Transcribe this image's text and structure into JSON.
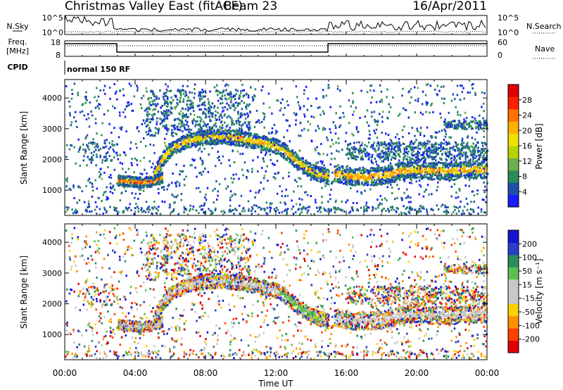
{
  "header": {
    "title": "Christmas Valley East (fitACF)",
    "beam": "Beam 23",
    "date": "16/Apr/2011"
  },
  "noise_panel": {
    "left_label": "N.Sky",
    "right_label": "N.Search",
    "left_ticks": [
      "10^5",
      "10^0"
    ],
    "right_ticks": [
      "10^5",
      "10^0"
    ]
  },
  "freq_panel": {
    "left_label_top": "Freq.",
    "left_label_bottom": "[MHz]",
    "left_ticks": [
      "18",
      "8"
    ],
    "right_label": "Nave",
    "right_ticks": [
      "60",
      "0"
    ]
  },
  "cpid_panel": {
    "label": "CPID",
    "text": "normal 150 RF"
  },
  "colors": {
    "power": [
      "#1a1aff",
      "#1f4fa8",
      "#2a8c5a",
      "#6ab04c",
      "#b8d400",
      "#f0e000",
      "#ffb000",
      "#ff7000",
      "#ff2000",
      "#e00000"
    ],
    "velocity": [
      "#1515d0",
      "#2a3fc8",
      "#2a8c5a",
      "#5cc04c",
      "#c8c8c8",
      "#c8c8c8",
      "#ffd000",
      "#ff9000",
      "#ff4000",
      "#e00000"
    ]
  },
  "chart_data": [
    {
      "type": "heatmap",
      "name": "power",
      "xlabel": "",
      "ylabel": "Slant Range [km]",
      "yticks": [
        1000,
        2000,
        3000,
        4000
      ],
      "ylim": [
        180,
        4600
      ],
      "xlim": [
        0,
        24
      ],
      "colorbar": {
        "label": "Power [dB]",
        "ticks": [
          4,
          8,
          12,
          16,
          20,
          24,
          28
        ],
        "range": [
          0,
          32
        ]
      },
      "bands": [
        {
          "x": [
            3.0,
            3.5,
            4.0,
            4.5,
            5.0,
            5.5
          ],
          "y": [
            1350,
            1320,
            1300,
            1290,
            1320,
            1450
          ],
          "width_km": 160,
          "value": 18
        },
        {
          "x": [
            5.0,
            5.6,
            6.2,
            7.0,
            8.0,
            9.0,
            10.0,
            11.0,
            12.0,
            12.6,
            13.2,
            13.8,
            14.4,
            15.0
          ],
          "y": [
            1500,
            2100,
            2450,
            2650,
            2750,
            2780,
            2700,
            2600,
            2450,
            2250,
            1950,
            1700,
            1550,
            1500
          ],
          "width_km": 220,
          "value": 14
        },
        {
          "x": [
            15.3,
            16.0,
            17.0,
            18.0,
            19.0,
            20.0,
            21.0,
            22.0,
            23.0,
            24.0
          ],
          "y": [
            1600,
            1500,
            1450,
            1500,
            1650,
            1700,
            1650,
            1650,
            1700,
            1700
          ],
          "width_km": 260,
          "value": 15
        }
      ]
    },
    {
      "type": "heatmap",
      "name": "velocity",
      "xlabel": "Time UT",
      "ylabel": "Slant Range [km]",
      "xticks": [
        "00:00",
        "04:00",
        "08:00",
        "12:00",
        "16:00",
        "20:00",
        "00:00"
      ],
      "yticks": [
        1000,
        2000,
        3000,
        4000
      ],
      "ylim": [
        180,
        4600
      ],
      "xlim": [
        0,
        24
      ],
      "colorbar": {
        "label": "Velocity [m s⁻¹]",
        "ticks": [
          200,
          100,
          50,
          15,
          -15,
          -50,
          -100,
          -200
        ]
      }
    }
  ]
}
